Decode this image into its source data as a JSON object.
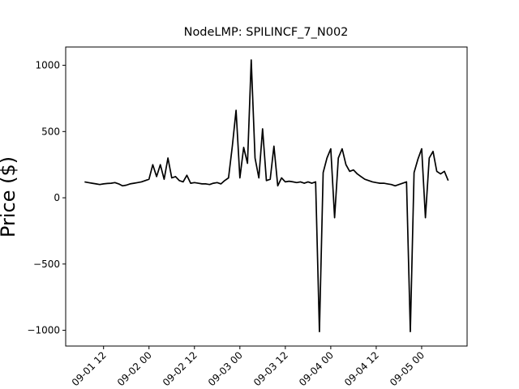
{
  "chart_data": {
    "type": "line",
    "title": "NodeLMP: SPILINCF_7_N002",
    "y_label": "Price ($)",
    "x": [
      "09-01 07",
      "09-01 08",
      "09-01 09",
      "09-01 10",
      "09-01 11",
      "09-01 12",
      "09-01 13",
      "09-01 14",
      "09-01 15",
      "09-01 16",
      "09-01 17",
      "09-01 18",
      "09-01 19",
      "09-01 20",
      "09-01 21",
      "09-01 22",
      "09-01 23",
      "09-02 00",
      "09-02 01",
      "09-02 02",
      "09-02 03",
      "09-02 04",
      "09-02 05",
      "09-02 06",
      "09-02 07",
      "09-02 08",
      "09-02 09",
      "09-02 10",
      "09-02 11",
      "09-02 12",
      "09-02 13",
      "09-02 14",
      "09-02 15",
      "09-02 16",
      "09-02 17",
      "09-02 18",
      "09-02 19",
      "09-02 20",
      "09-02 21",
      "09-02 22",
      "09-02 23",
      "09-03 00",
      "09-03 01",
      "09-03 02",
      "09-03 03",
      "09-03 04",
      "09-03 05",
      "09-03 06",
      "09-03 07",
      "09-03 08",
      "09-03 09",
      "09-03 10",
      "09-03 11",
      "09-03 12",
      "09-03 13",
      "09-03 14",
      "09-03 15",
      "09-03 16",
      "09-03 17",
      "09-03 18",
      "09-03 19",
      "09-03 20",
      "09-03 21",
      "09-03 22",
      "09-03 23",
      "09-04 00",
      "09-04 01",
      "09-04 02",
      "09-04 03",
      "09-04 04",
      "09-04 05",
      "09-04 06",
      "09-04 07",
      "09-04 08",
      "09-04 09",
      "09-04 10",
      "09-04 11",
      "09-04 12",
      "09-04 13",
      "09-04 14",
      "09-04 15",
      "09-04 16",
      "09-04 17",
      "09-04 18",
      "09-04 19",
      "09-04 20",
      "09-04 21",
      "09-04 22",
      "09-04 23",
      "09-05 00",
      "09-05 01",
      "09-05 02",
      "09-05 03",
      "09-05 04",
      "09-05 05",
      "09-05 06",
      "09-05 07"
    ],
    "series": [
      {
        "color": "#000000",
        "values": [
          120,
          115,
          110,
          105,
          100,
          105,
          108,
          110,
          115,
          105,
          90,
          95,
          105,
          110,
          115,
          120,
          130,
          140,
          250,
          160,
          250,
          140,
          300,
          150,
          160,
          130,
          120,
          170,
          110,
          115,
          110,
          105,
          105,
          100,
          110,
          115,
          105,
          130,
          150,
          390,
          660,
          150,
          380,
          260,
          1040,
          300,
          150,
          520,
          130,
          140,
          390,
          90,
          150,
          120,
          125,
          120,
          115,
          120,
          110,
          120,
          110,
          120,
          -1010,
          190,
          300,
          370,
          -150,
          300,
          370,
          250,
          200,
          210,
          180,
          160,
          140,
          130,
          120,
          115,
          110,
          110,
          105,
          100,
          90,
          100,
          110,
          120,
          -1010,
          190,
          290,
          370,
          -150,
          300,
          350,
          200,
          180,
          200,
          130
        ]
      }
    ],
    "xlim": [
      "09-01 02",
      "09-05 12"
    ],
    "xticks": [
      "09-01 12",
      "09-02 00",
      "09-02 12",
      "09-03 00",
      "09-03 12",
      "09-04 00",
      "09-04 12",
      "09-05 00"
    ],
    "ylim": [
      -1119,
      1138
    ],
    "yticks": [
      {
        "value": -1000,
        "label": "−1000"
      },
      {
        "value": -500,
        "label": "−500"
      },
      0,
      500,
      1000
    ]
  }
}
